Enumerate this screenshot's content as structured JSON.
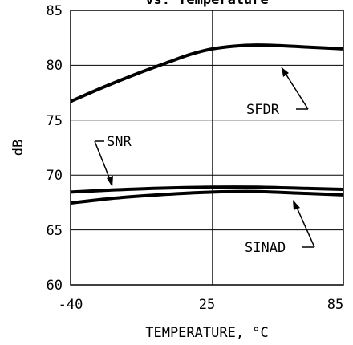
{
  "chart_data": {
    "type": "line",
    "title": "vs. Temperature",
    "xlabel": "TEMPERATURE, °C",
    "ylabel": "dB",
    "xlim": [
      -40,
      85
    ],
    "ylim": [
      60,
      85
    ],
    "x_ticks": [
      "-40",
      "25",
      "85"
    ],
    "y_ticks": [
      "60",
      "65",
      "70",
      "75",
      "80",
      "85"
    ],
    "grid": true,
    "series": [
      {
        "name": "SFDR",
        "x": [
          -40,
          -25,
          -10,
          5,
          15,
          25,
          35,
          45,
          55,
          65,
          75,
          85
        ],
        "y": [
          76.7,
          78.0,
          79.2,
          80.3,
          81.0,
          81.5,
          81.75,
          81.85,
          81.8,
          81.7,
          81.6,
          81.5
        ]
      },
      {
        "name": "SNR",
        "x": [
          -40,
          -20,
          0,
          25,
          45,
          65,
          85
        ],
        "y": [
          68.45,
          68.65,
          68.8,
          68.9,
          68.9,
          68.8,
          68.7
        ]
      },
      {
        "name": "SINAD",
        "x": [
          -40,
          -20,
          0,
          25,
          45,
          65,
          85
        ],
        "y": [
          67.45,
          67.9,
          68.2,
          68.45,
          68.5,
          68.35,
          68.2
        ]
      }
    ],
    "annotations": [
      "SFDR",
      "SNR",
      "SINAD"
    ]
  }
}
